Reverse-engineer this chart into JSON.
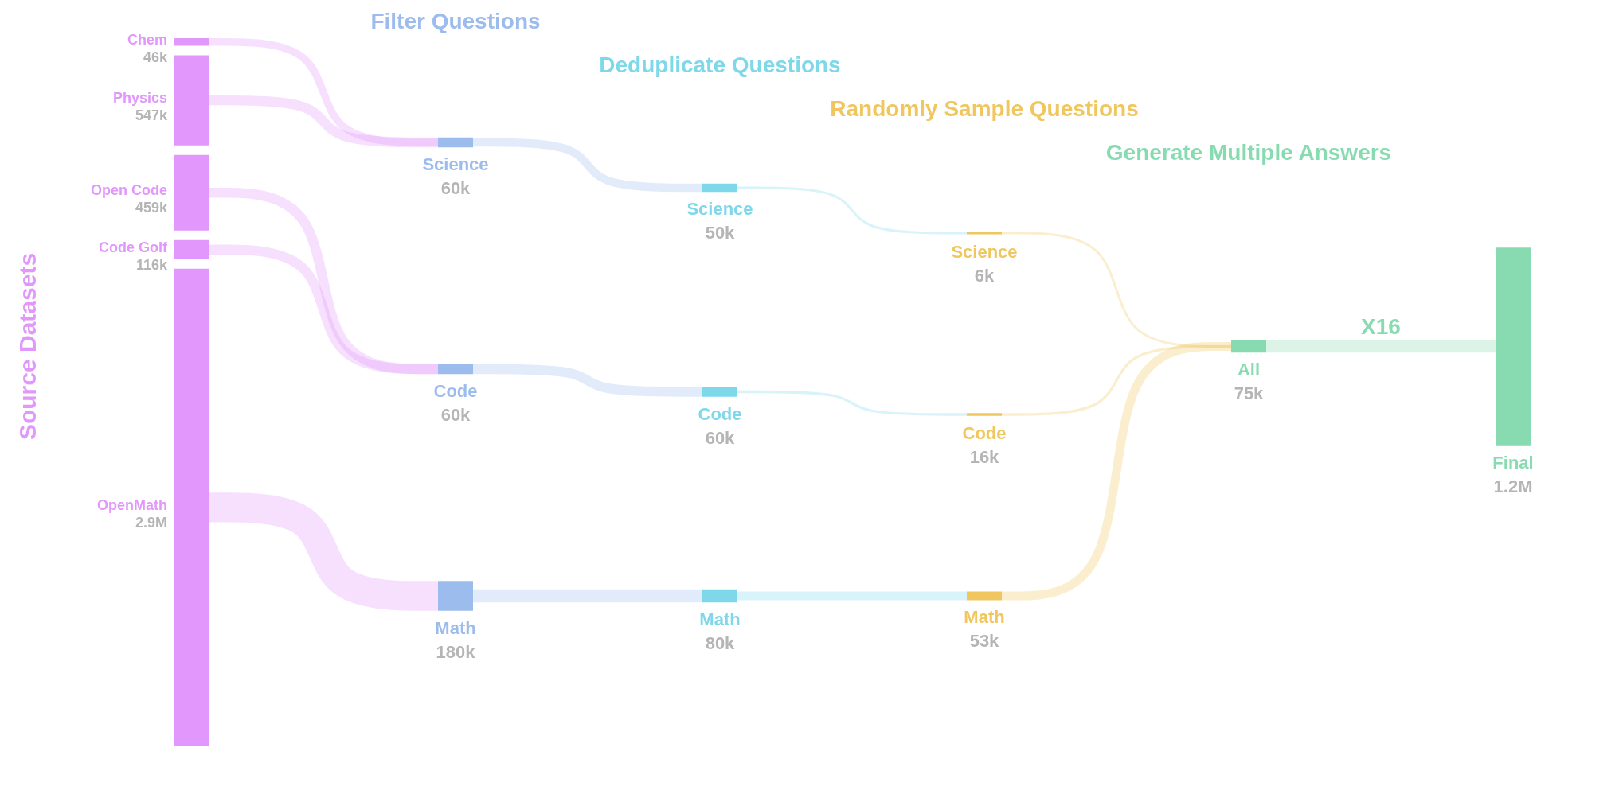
{
  "chart_data": {
    "type": "other",
    "categories": [
      "Chem",
      "Physics",
      "Open Code",
      "Code Golf",
      "OpenMath",
      "Science",
      "Code",
      "Math",
      "Science",
      "Code",
      "Math",
      "Science",
      "Code",
      "Math",
      "All",
      "Final"
    ],
    "series": [
      {
        "name": "Source Datasets",
        "color": "#e197fb",
        "values": [
          46000,
          547000,
          459000,
          116000,
          2900000,
          null,
          null,
          null,
          null,
          null,
          null,
          null,
          null,
          null,
          null,
          null
        ],
        "value_labels": [
          "46k",
          "547k",
          "459k",
          "116k",
          "2.9M",
          null,
          null,
          null,
          null,
          null,
          null,
          null,
          null,
          null,
          null,
          null
        ]
      },
      {
        "name": "Filter Questions",
        "color": "#9dbcee",
        "values": [
          null,
          null,
          null,
          null,
          null,
          60000,
          60000,
          180000,
          null,
          null,
          null,
          null,
          null,
          null,
          null,
          null
        ],
        "value_labels": [
          null,
          null,
          null,
          null,
          null,
          "60k",
          "60k",
          "180k",
          null,
          null,
          null,
          null,
          null,
          null,
          null,
          null
        ]
      },
      {
        "name": "Deduplicate Questions",
        "color": "#7fd8ea",
        "values": [
          null,
          null,
          null,
          null,
          null,
          null,
          null,
          null,
          50000,
          60000,
          80000,
          null,
          null,
          null,
          null,
          null
        ],
        "value_labels": [
          null,
          null,
          null,
          null,
          null,
          null,
          null,
          null,
          "50k",
          "60k",
          "80k",
          null,
          null,
          null,
          null,
          null
        ]
      },
      {
        "name": "Randomly Sample Questions",
        "color": "#f0c75e",
        "values": [
          null,
          null,
          null,
          null,
          null,
          null,
          null,
          null,
          null,
          null,
          null,
          6000,
          16000,
          53000,
          null,
          null
        ],
        "value_labels": [
          null,
          null,
          null,
          null,
          null,
          null,
          null,
          null,
          null,
          null,
          null,
          "6k",
          "16k",
          "53k",
          null,
          null
        ]
      },
      {
        "name": "Generate Multiple Answers",
        "color": "#88dbb1",
        "values": [
          null,
          null,
          null,
          null,
          null,
          null,
          null,
          null,
          null,
          null,
          null,
          null,
          null,
          null,
          75000,
          null
        ],
        "value_labels": [
          null,
          null,
          null,
          null,
          null,
          null,
          null,
          null,
          null,
          null,
          null,
          null,
          null,
          null,
          "75k",
          null
        ]
      },
      {
        "color": "#88dbb1",
        "values": [
          null,
          null,
          null,
          null,
          null,
          null,
          null,
          null,
          null,
          null,
          null,
          null,
          null,
          null,
          null,
          1200000
        ],
        "value_labels": [
          null,
          null,
          null,
          null,
          null,
          null,
          null,
          null,
          null,
          null,
          null,
          null,
          null,
          null,
          null,
          "1.2M"
        ]
      }
    ],
    "annotations": [
      "X16"
    ]
  }
}
